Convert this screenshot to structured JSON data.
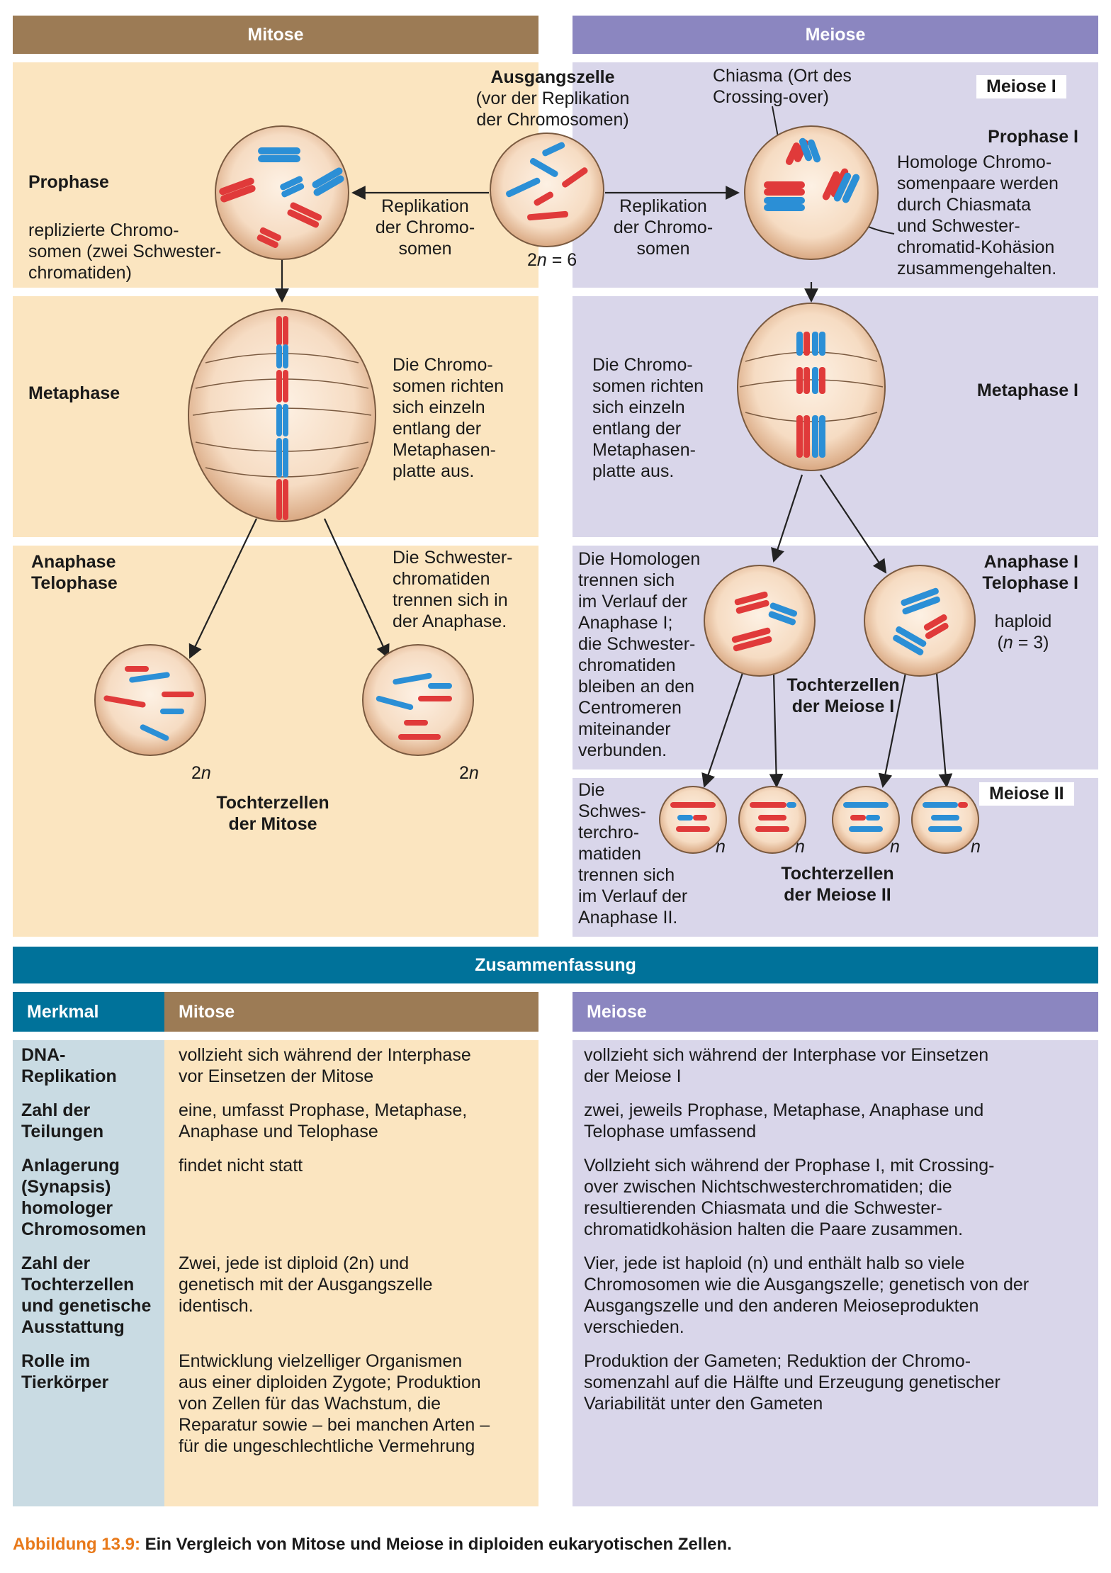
{
  "headers": {
    "mitosis": "Mitose",
    "meiosis": "Meiose"
  },
  "center": {
    "title": "Ausgangszelle",
    "subtitle_line1": "(vor der Replikation",
    "subtitle_line2": "der Chromosomen)",
    "ploidy_prefix": "2",
    "ploidy_var": "n",
    "ploidy_suffix": " = 6"
  },
  "replication": {
    "line1": "Replikation",
    "line2": "der Chromo-",
    "line3": "somen"
  },
  "mitosis": {
    "prophase": "Prophase",
    "prophase_desc": [
      "replizierte Chromo-",
      "somen (zwei Schwester-",
      "chromatiden)"
    ],
    "metaphase": "Metaphase",
    "metaphase_desc": [
      "Die Chromo-",
      "somen richten",
      "sich einzeln",
      "entlang der",
      "Metaphasen-",
      "platte aus."
    ],
    "anaphase": "Anaphase",
    "telophase": "Telophase",
    "anaphase_desc": [
      "Die Schwester-",
      "chromatiden",
      "trennen sich in",
      "der Anaphase."
    ],
    "ploidy_num": "2",
    "ploidy_var": "n",
    "daughters_line1": "Tochterzellen",
    "daughters_line2": "der Mitose"
  },
  "meiosis": {
    "chiasma_line1": "Chiasma (Ort des",
    "chiasma_line2": "Crossing-over)",
    "meiosis1_tag": "Meiose I",
    "prophase1": "Prophase I",
    "prophase1_desc": [
      "Homologe Chromo-",
      "somenpaare werden",
      "durch Chiasmata",
      "und Schwester-",
      "chromatid-Kohäsion",
      "zusammengehalten."
    ],
    "metaphase1": "Metaphase I",
    "metaphase1_desc": [
      "Die Chromo-",
      "somen richten",
      "sich einzeln",
      "entlang der",
      "Metaphasen-",
      "platte aus."
    ],
    "anaphase1": "Anaphase I",
    "telophase1": "Telophase I",
    "haploid": "haploid",
    "haploid_n_open": "(",
    "haploid_n_var": "n",
    "haploid_n_close": " = 3)",
    "anaphase1_desc": [
      "Die Homologen",
      "trennen sich",
      "im Verlauf der",
      "Anaphase I;",
      "die Schwester-",
      "chromatiden",
      "bleiben an den",
      "Centromeren",
      "miteinander",
      "verbunden."
    ],
    "daughters1_line1": "Tochterzellen",
    "daughters1_line2": "der Meiose I",
    "meiosis2_tag": "Meiose II",
    "anaphase2_desc": [
      "Die",
      "Schwes-",
      "terchro-",
      "matiden",
      "trennen sich",
      "im Verlauf der",
      "Anaphase II."
    ],
    "n_label": "n",
    "daughters2_line1": "Tochterzellen",
    "daughters2_line2": "der Meiose II"
  },
  "summary": {
    "title": "Zusammenfassung",
    "col_feature": "Merkmal",
    "col_mitosis": "Mitose",
    "col_meiosis": "Meiose",
    "rows": [
      {
        "feature": [
          "DNA-",
          "Replikation"
        ],
        "mitosis": [
          "vollzieht sich während der Interphase",
          "vor Einsetzen der Mitose"
        ],
        "meiosis": [
          "vollzieht sich während der Interphase vor Einsetzen",
          "der Meiose I"
        ]
      },
      {
        "feature": [
          "Zahl der",
          "Teilungen"
        ],
        "mitosis": [
          "eine, umfasst Prophase, Metaphase,",
          "Anaphase und Telophase"
        ],
        "meiosis": [
          "zwei, jeweils Prophase, Metaphase, Anaphase und",
          "Telophase umfassend"
        ]
      },
      {
        "feature": [
          "Anlagerung",
          "(Synapsis)",
          "homologer",
          "Chromosomen"
        ],
        "mitosis": [
          "findet nicht statt"
        ],
        "meiosis": [
          "Vollzieht sich während der Prophase I, mit Crossing-",
          "over zwischen Nichtschwesterchromatiden; die",
          "resultierenden Chiasmata und die Schwester-",
          "chromatidkohäsion halten die Paare zusammen."
        ]
      },
      {
        "feature": [
          "Zahl der",
          "Tochterzellen",
          "und genetische",
          "Ausstattung"
        ],
        "mitosis": [
          "Zwei, jede ist diploid (2n) und",
          "genetisch mit der Ausgangszelle",
          "identisch."
        ],
        "meiosis": [
          "Vier, jede ist haploid (n) und enthält halb so viele",
          "Chromosomen wie die Ausgangszelle; genetisch von der",
          "Ausgangszelle und den anderen Meioseprodukten",
          "verschieden."
        ]
      },
      {
        "feature": [
          "Rolle im",
          "Tierkörper"
        ],
        "mitosis": [
          "Entwicklung vielzelliger Organismen",
          "aus einer diploiden Zygote; Produktion",
          "von Zellen für das Wachstum, die",
          "Reparatur sowie – bei manchen Arten –",
          "für die ungeschlechtliche Vermehrung"
        ],
        "meiosis": [
          "Produktion der Gameten; Reduktion der Chromo-",
          "somenzahl auf die Hälfte und Erzeugung genetischer",
          "Variabilität unter den Gameten"
        ]
      }
    ]
  },
  "caption": {
    "label": "Abbildung 13.9:",
    "text": "Ein Vergleich von Mitose und Meiose in diploiden eukaryotischen Zellen."
  },
  "colors": {
    "mitosis_header": "#9c7b55",
    "meiosis_header": "#8b86c0",
    "mitosis_panel": "#fbe5c0",
    "meiosis_panel": "#d9d6ea",
    "summary_header": "#00729a",
    "feature_col": "#c9dbe3",
    "chrom_red": "#e03a3a",
    "chrom_blue": "#2b8fd6",
    "caption_orange": "#e8791a"
  }
}
